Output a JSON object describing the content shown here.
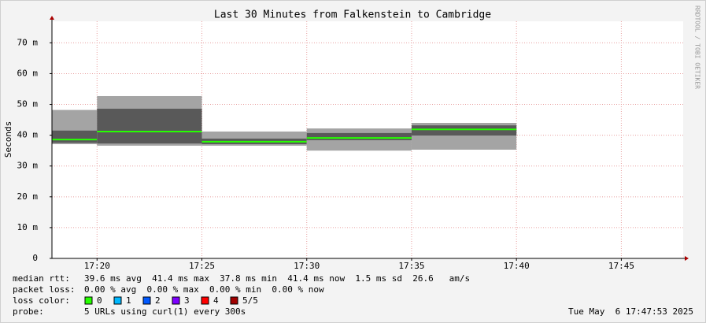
{
  "chart_data": {
    "type": "smokeping",
    "title": "Last 30 Minutes from Falkenstein to Cambridge",
    "y_label": "Seconds",
    "credit": "RRDTOOL / TOBI OETIKER",
    "xlim": [
      1037.85,
      1067.95
    ],
    "xticks": [
      {
        "value": 1040,
        "label": "17:20"
      },
      {
        "value": 1045,
        "label": "17:25"
      },
      {
        "value": 1050,
        "label": "17:30"
      },
      {
        "value": 1055,
        "label": "17:35"
      },
      {
        "value": 1060,
        "label": "17:40"
      },
      {
        "value": 1065,
        "label": "17:45"
      }
    ],
    "ylim": [
      0,
      0.077
    ],
    "yticks": [
      0,
      {
        "value": 0.01,
        "label": "10 m"
      },
      {
        "value": 0.02,
        "label": "20 m"
      },
      {
        "value": 0.03,
        "label": "30 m"
      },
      {
        "value": 0.04,
        "label": "40 m"
      },
      {
        "value": 0.05,
        "label": "50 m"
      },
      {
        "value": 0.06,
        "label": "60 m"
      },
      {
        "value": 0.07,
        "label": "70 m"
      }
    ],
    "grid": true,
    "bins": [
      1037.85,
      1040,
      1045,
      1050,
      1055,
      1060
    ],
    "light_low": [
      0.0371,
      0.0366,
      0.0366,
      0.035,
      0.0353
    ],
    "light_high": [
      0.0482,
      0.0527,
      0.0412,
      0.0422,
      0.044
    ],
    "dark_low": [
      0.0375,
      0.0373,
      0.0371,
      0.0384,
      0.0399
    ],
    "dark_high": [
      0.0415,
      0.0486,
      0.0389,
      0.0407,
      0.0432
    ],
    "median": [
      0.0386,
      0.0412,
      0.0379,
      0.0391,
      0.0419
    ],
    "light_color": "#a4a4a4",
    "dark_color": "#595959",
    "median_color": "#26ff00",
    "stats": [
      {
        "label": "median rtt:",
        "text": "39.6 ms avg  41.4 ms max  37.8 ms min  41.4 ms now  1.5 ms sd  26.6   am/s"
      },
      {
        "label": "packet loss:",
        "text": "0.00 % avg  0.00 % max  0.00 % min  0.00 % now"
      }
    ],
    "loss_label": "loss color:",
    "loss_colors": [
      {
        "label": "0",
        "color": "#26ff00"
      },
      {
        "label": "1",
        "color": "#00b8ff"
      },
      {
        "label": "2",
        "color": "#0059ff"
      },
      {
        "label": "3",
        "color": "#7e00ff"
      },
      {
        "label": "4",
        "color": "#ff0000"
      },
      {
        "label": "5/5",
        "color": "#a10000"
      }
    ],
    "probe_label": "probe:",
    "probe_text": "5 URLs using curl(1) every 300s",
    "date": "Tue May  6 17:47:53 2025"
  }
}
